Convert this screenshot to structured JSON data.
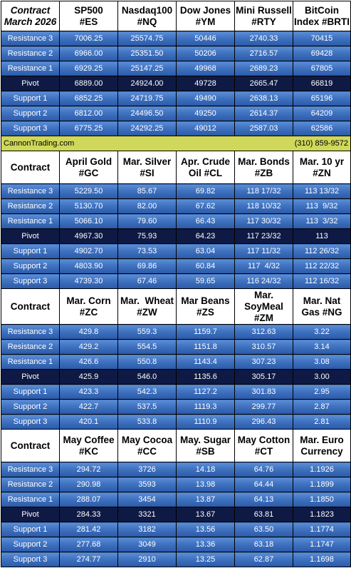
{
  "sections": [
    {
      "first_header": "Contract March 2026",
      "first_header_lines": [
        "Contract",
        "March 2026"
      ],
      "columns": [
        [
          "SP500",
          "#ES"
        ],
        [
          "Nasdaq100",
          "#NQ"
        ],
        [
          "Dow Jones",
          "#YM"
        ],
        [
          "Mini Russell",
          "#RTY"
        ],
        [
          "BitCoin",
          "Index #BRTI"
        ]
      ],
      "rows": [
        {
          "label": "Resistance 3",
          "kind": "res",
          "values": [
            "7006.25",
            "25574.75",
            "50446",
            "2740.33",
            "70415"
          ]
        },
        {
          "label": "Resistance 2",
          "kind": "res",
          "values": [
            "6966.00",
            "25351.50",
            "50206",
            "2716.57",
            "69428"
          ]
        },
        {
          "label": "Resistance 1",
          "kind": "res",
          "values": [
            "6929.25",
            "25147.25",
            "49968",
            "2689.23",
            "67805"
          ]
        },
        {
          "label": "Pivot",
          "kind": "piv",
          "values": [
            "6889.00",
            "24924.00",
            "49728",
            "2665.47",
            "66819"
          ]
        },
        {
          "label": "Support 1",
          "kind": "sup",
          "values": [
            "6852.25",
            "24719.75",
            "49490",
            "2638.13",
            "65196"
          ]
        },
        {
          "label": "Support 2",
          "kind": "sup",
          "values": [
            "6812.00",
            "24496.50",
            "49250",
            "2614.37",
            "64209"
          ]
        },
        {
          "label": "Support 3",
          "kind": "sup",
          "values": [
            "6775.25",
            "24292.25",
            "49012",
            "2587.03",
            "62586"
          ]
        }
      ]
    },
    {
      "first_header": "Contract",
      "first_header_lines": [
        "Contract"
      ],
      "columns": [
        [
          "April Gold",
          "#GC"
        ],
        [
          "Mar. Silver",
          "#SI"
        ],
        [
          "Apr. Crude",
          "Oil #CL"
        ],
        [
          "Mar. Bonds",
          "#ZB"
        ],
        [
          "Mar. 10 yr",
          "#ZN"
        ]
      ],
      "rows": [
        {
          "label": "Resistance 3",
          "kind": "res",
          "values": [
            "5229.50",
            "85.67",
            "69.82",
            "118 17/32",
            "113 13/32"
          ]
        },
        {
          "label": "Resistance 2",
          "kind": "res",
          "values": [
            "5130.70",
            "82.00",
            "67.62",
            "118 10/32",
            "113  9/32"
          ]
        },
        {
          "label": "Resistance 1",
          "kind": "res",
          "values": [
            "5066.10",
            "79.60",
            "66.43",
            "117 30/32",
            "113  3/32"
          ]
        },
        {
          "label": "Pivot",
          "kind": "piv",
          "values": [
            "4967.30",
            "75.93",
            "64.23",
            "117 23/32",
            "113"
          ]
        },
        {
          "label": "Support 1",
          "kind": "sup",
          "values": [
            "4902.70",
            "73.53",
            "63.04",
            "117 11/32",
            "112 26/32"
          ]
        },
        {
          "label": "Support 2",
          "kind": "sup",
          "values": [
            "4803.90",
            "69.86",
            "60.84",
            "117  4/32",
            "112 22/32"
          ]
        },
        {
          "label": "Support 3",
          "kind": "sup",
          "values": [
            "4739.30",
            "67.46",
            "59.65",
            "116 24/32",
            "112 16/32"
          ]
        }
      ]
    },
    {
      "first_header": "Contract",
      "first_header_lines": [
        "Contract"
      ],
      "columns": [
        [
          "Mar. Corn",
          "#ZC"
        ],
        [
          "Mar.  Wheat",
          "#ZW"
        ],
        [
          "Mar Beans",
          "#ZS"
        ],
        [
          "Mar.",
          "SoyMeal",
          "#ZM"
        ],
        [
          "Mar. Nat",
          "Gas #NG"
        ]
      ],
      "rows": [
        {
          "label": "Resistance 3",
          "kind": "res",
          "values": [
            "429.8",
            "559.3",
            "1159.7",
            "312.63",
            "3.22"
          ]
        },
        {
          "label": "Resistance 2",
          "kind": "res",
          "values": [
            "429.2",
            "554.5",
            "1151.8",
            "310.57",
            "3.14"
          ]
        },
        {
          "label": "Resistance 1",
          "kind": "res",
          "values": [
            "426.6",
            "550.8",
            "1143.4",
            "307.23",
            "3.08"
          ]
        },
        {
          "label": "Pivot",
          "kind": "piv",
          "values": [
            "425.9",
            "546.0",
            "1135.6",
            "305.17",
            "3.00"
          ]
        },
        {
          "label": "Support 1",
          "kind": "sup",
          "values": [
            "423.3",
            "542.3",
            "1127.2",
            "301.83",
            "2.95"
          ]
        },
        {
          "label": "Support 2",
          "kind": "sup",
          "values": [
            "422.7",
            "537.5",
            "1119.3",
            "299.77",
            "2.87"
          ]
        },
        {
          "label": "Support 3",
          "kind": "sup",
          "values": [
            "420.1",
            "533.8",
            "1110.9",
            "296.43",
            "2.81"
          ]
        }
      ]
    },
    {
      "first_header": "Contract",
      "first_header_lines": [
        "Contract"
      ],
      "columns": [
        [
          "May Coffee",
          "#KC"
        ],
        [
          "May Cocoa",
          "#CC"
        ],
        [
          "May. Sugar",
          "#SB"
        ],
        [
          "May Cotton",
          "#CT"
        ],
        [
          "Mar. Euro",
          "Currency"
        ]
      ],
      "rows": [
        {
          "label": "Resistance 3",
          "kind": "res",
          "values": [
            "294.72",
            "3726",
            "14.18",
            "64.76",
            "1.1926"
          ]
        },
        {
          "label": "Resistance 2",
          "kind": "res",
          "values": [
            "290.98",
            "3593",
            "13.98",
            "64.44",
            "1.1899"
          ]
        },
        {
          "label": "Resistance 1",
          "kind": "res",
          "values": [
            "288.07",
            "3454",
            "13.87",
            "64.13",
            "1.1850"
          ]
        },
        {
          "label": "Pivot",
          "kind": "piv",
          "values": [
            "284.33",
            "3321",
            "13.67",
            "63.81",
            "1.1823"
          ]
        },
        {
          "label": "Support 1",
          "kind": "sup",
          "values": [
            "281.42",
            "3182",
            "13.56",
            "63.50",
            "1.1774"
          ]
        },
        {
          "label": "Support 2",
          "kind": "sup",
          "values": [
            "277.68",
            "3049",
            "13.36",
            "63.18",
            "1.1747"
          ]
        },
        {
          "label": "Support 3",
          "kind": "sup",
          "values": [
            "274.77",
            "2910",
            "13.25",
            "62.87",
            "1.1698"
          ]
        }
      ]
    }
  ],
  "banner": {
    "left": "CannonTrading.com",
    "right": "(310) 859-9572"
  },
  "colors": {
    "level_row": "#3f72c0",
    "pivot_row": "#0e1a44",
    "banner": "#cfd85a"
  }
}
